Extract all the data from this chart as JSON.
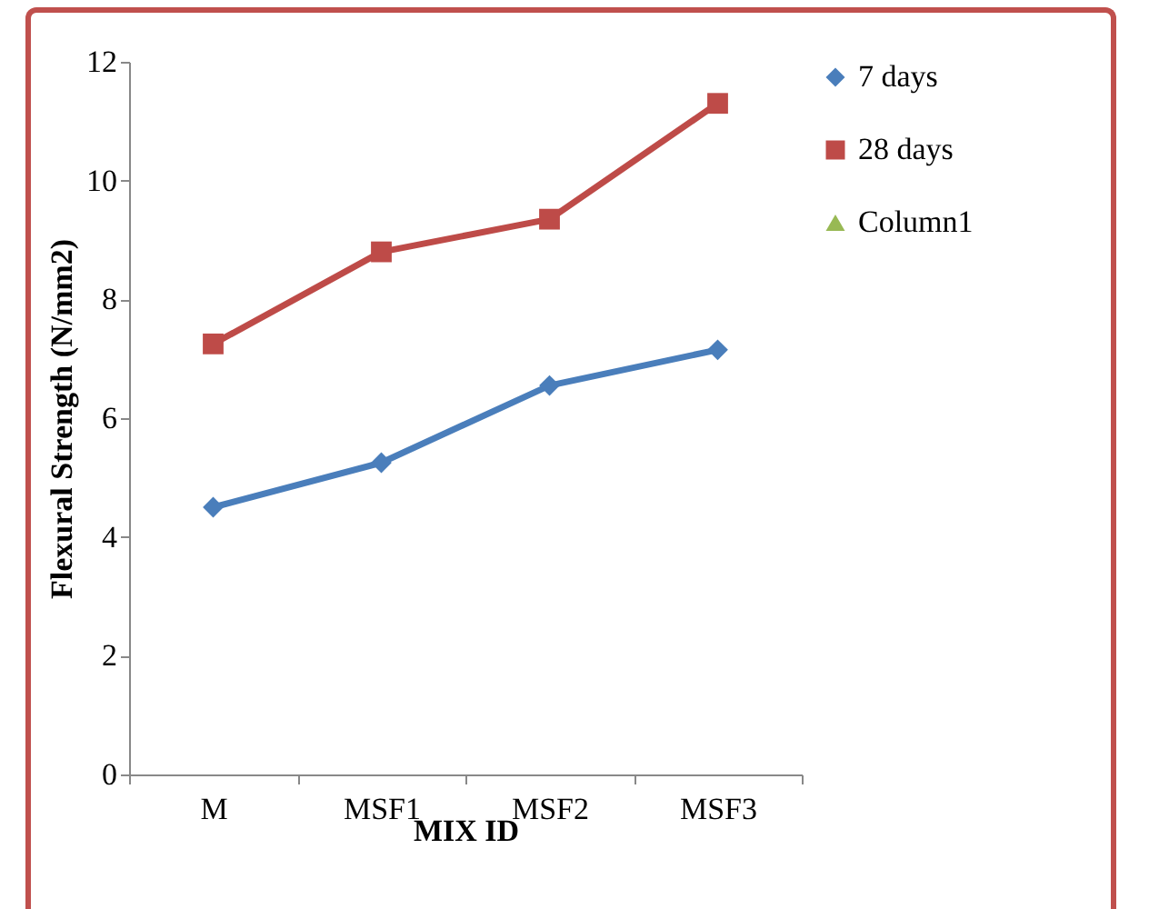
{
  "chart_data": {
    "type": "line",
    "xlabel": "MIX ID",
    "ylabel": "Flexural Strength (N/mm2)",
    "categories": [
      "M",
      "MSF1",
      "MSF2",
      "MSF3"
    ],
    "ylim": [
      0,
      12
    ],
    "yticks": [
      0,
      2,
      4,
      6,
      8,
      10,
      12
    ],
    "grid": false,
    "legend": "right",
    "line_style": "solid",
    "series": [
      {
        "name": "7 days",
        "color": "#4a7ebb",
        "marker": "diamond",
        "values": [
          4.5,
          5.25,
          6.55,
          7.15
        ]
      },
      {
        "name": "28 days",
        "color": "#be4b48",
        "marker": "square",
        "values": [
          7.25,
          8.8,
          9.35,
          11.3
        ]
      },
      {
        "name": "Column1",
        "color": "#98b954",
        "marker": "triangle",
        "values": [
          null,
          null,
          null,
          null
        ]
      }
    ]
  }
}
